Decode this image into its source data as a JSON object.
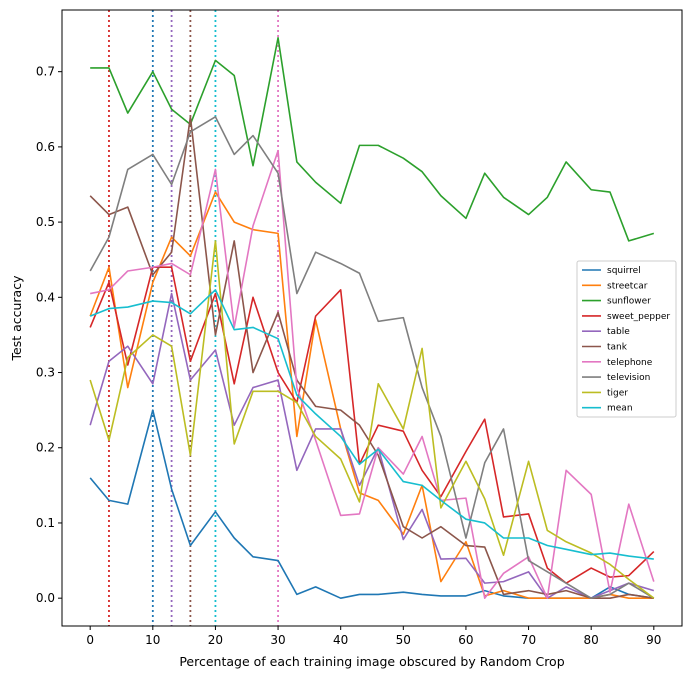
{
  "chart_data": {
    "type": "line",
    "title": "",
    "xlabel": "Percentage of each training image obscured by Random Crop",
    "ylabel": "Test accuracy",
    "xlim": [
      -4.5,
      94.5
    ],
    "ylim": [
      -0.037,
      0.782
    ],
    "xticks": [
      0,
      10,
      20,
      30,
      40,
      50,
      60,
      70,
      80,
      90
    ],
    "xtick_labels": [
      "0",
      "10",
      "20",
      "30",
      "40",
      "50",
      "60",
      "70",
      "80",
      "90"
    ],
    "yticks": [
      0.0,
      0.1,
      0.2,
      0.3,
      0.4,
      0.5,
      0.6,
      0.7
    ],
    "ytick_labels": [
      "0.0",
      "0.1",
      "0.2",
      "0.3",
      "0.4",
      "0.5",
      "0.6",
      "0.7"
    ],
    "legend_position": "center-right",
    "x": [
      0,
      3,
      6,
      10,
      13,
      16,
      20,
      23,
      26,
      30,
      33,
      36,
      40,
      43,
      46,
      50,
      53,
      56,
      60,
      63,
      66,
      70,
      73,
      76,
      80,
      83,
      86,
      90
    ],
    "vlines": [
      {
        "x": 3,
        "series": "sweet_pepper",
        "color": "#d62728"
      },
      {
        "x": 10,
        "series": "squirrel",
        "color": "#1f77b4"
      },
      {
        "x": 13,
        "series": "table",
        "color": "#9467bd"
      },
      {
        "x": 16,
        "series": "tank",
        "color": "#8c564b"
      },
      {
        "x": 20,
        "series": "mean",
        "color": "#17becf"
      },
      {
        "x": 30,
        "series": "telephone",
        "color": "#e377c2"
      }
    ],
    "series": [
      {
        "name": "squirrel",
        "color": "#1f77b4",
        "values": [
          0.16,
          0.13,
          0.125,
          0.25,
          0.145,
          0.07,
          0.115,
          0.08,
          0.055,
          0.05,
          0.005,
          0.015,
          0.0,
          0.005,
          0.005,
          0.008,
          0.005,
          0.003,
          0.003,
          0.01,
          0.003,
          0.0,
          0.0,
          0.0,
          0.0,
          0.015,
          0.005,
          0.0
        ]
      },
      {
        "name": "streetcar",
        "color": "#ff7f0e",
        "values": [
          0.375,
          0.44,
          0.28,
          0.42,
          0.48,
          0.455,
          0.54,
          0.5,
          0.49,
          0.485,
          0.215,
          0.37,
          0.225,
          0.14,
          0.13,
          0.085,
          0.15,
          0.022,
          0.075,
          0.003,
          0.01,
          0.0,
          0.0,
          0.0,
          0.0,
          0.005,
          0.0,
          0.0
        ]
      },
      {
        "name": "sunflower",
        "color": "#2ca02c",
        "values": [
          0.705,
          0.705,
          0.645,
          0.7,
          0.65,
          0.63,
          0.715,
          0.695,
          0.575,
          0.745,
          0.58,
          0.553,
          0.525,
          0.602,
          0.602,
          0.585,
          0.567,
          0.535,
          0.505,
          0.565,
          0.533,
          0.51,
          0.533,
          0.58,
          0.543,
          0.54,
          0.475,
          0.485
        ]
      },
      {
        "name": "sweet_pepper",
        "color": "#d62728",
        "values": [
          0.36,
          0.42,
          0.31,
          0.44,
          0.44,
          0.315,
          0.405,
          0.285,
          0.4,
          0.3,
          0.26,
          0.375,
          0.41,
          0.178,
          0.23,
          0.222,
          0.17,
          0.135,
          0.195,
          0.238,
          0.108,
          0.112,
          0.04,
          0.02,
          0.04,
          0.028,
          0.03,
          0.062
        ]
      },
      {
        "name": "table",
        "color": "#9467bd",
        "values": [
          0.23,
          0.315,
          0.335,
          0.285,
          0.405,
          0.29,
          0.33,
          0.23,
          0.28,
          0.29,
          0.17,
          0.225,
          0.225,
          0.15,
          0.2,
          0.078,
          0.118,
          0.052,
          0.053,
          0.02,
          0.022,
          0.035,
          0.0,
          0.015,
          0.0,
          0.01,
          0.02,
          0.01
        ]
      },
      {
        "name": "tank",
        "color": "#8c564b",
        "values": [
          0.535,
          0.51,
          0.52,
          0.43,
          0.46,
          0.64,
          0.35,
          0.475,
          0.3,
          0.38,
          0.29,
          0.255,
          0.25,
          0.23,
          0.19,
          0.095,
          0.08,
          0.095,
          0.07,
          0.068,
          0.005,
          0.01,
          0.005,
          0.01,
          0.0,
          0.0,
          0.005,
          0.0
        ]
      },
      {
        "name": "telephone",
        "color": "#e377c2",
        "values": [
          0.405,
          0.41,
          0.435,
          0.44,
          0.445,
          0.43,
          0.57,
          0.36,
          0.495,
          0.595,
          0.28,
          0.21,
          0.11,
          0.112,
          0.2,
          0.165,
          0.215,
          0.13,
          0.133,
          0.0,
          0.033,
          0.055,
          0.0,
          0.17,
          0.138,
          0.008,
          0.125,
          0.022
        ]
      },
      {
        "name": "television",
        "color": "#7f7f7f",
        "values": [
          0.435,
          0.48,
          0.57,
          0.59,
          0.55,
          0.62,
          0.64,
          0.59,
          0.615,
          0.565,
          0.405,
          0.46,
          0.445,
          0.432,
          0.368,
          0.373,
          0.28,
          0.215,
          0.08,
          0.18,
          0.225,
          0.05,
          0.035,
          0.02,
          0.0,
          0.005,
          0.02,
          0.0
        ]
      },
      {
        "name": "tiger",
        "color": "#bcbd22",
        "values": [
          0.29,
          0.21,
          0.32,
          0.35,
          0.335,
          0.19,
          0.475,
          0.205,
          0.275,
          0.275,
          0.26,
          0.215,
          0.185,
          0.128,
          0.285,
          0.225,
          0.332,
          0.12,
          0.182,
          0.132,
          0.057,
          0.182,
          0.09,
          0.075,
          0.06,
          0.045,
          0.025,
          0.0
        ]
      },
      {
        "name": "mean",
        "color": "#17becf",
        "values": [
          0.375,
          0.385,
          0.387,
          0.395,
          0.393,
          0.378,
          0.41,
          0.357,
          0.36,
          0.345,
          0.27,
          0.245,
          0.215,
          0.178,
          0.198,
          0.155,
          0.15,
          0.13,
          0.105,
          0.1,
          0.08,
          0.08,
          0.07,
          0.065,
          0.058,
          0.06,
          0.056,
          0.052
        ]
      }
    ]
  }
}
